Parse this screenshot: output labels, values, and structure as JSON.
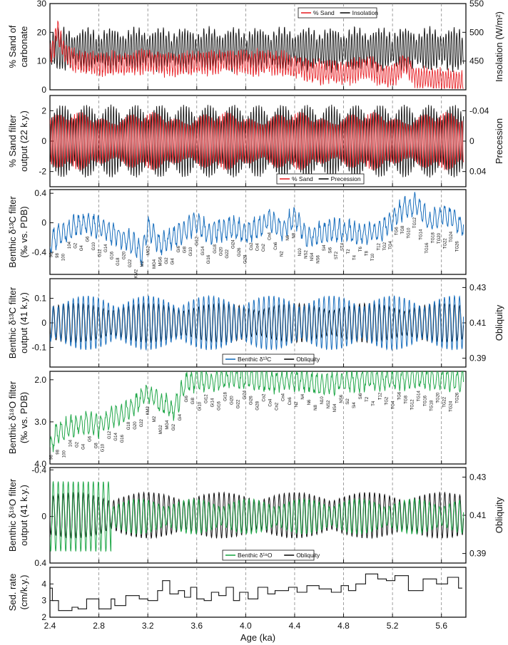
{
  "chart_data": [
    {
      "id": "p1",
      "type": "line",
      "ylabel_left": [
        "% Sand of",
        "carbonate"
      ],
      "ylabel_right": [
        "Insolation (W/m²)"
      ],
      "ylim_left": [
        0,
        30
      ],
      "yticks_left": [
        "0",
        "10",
        "20",
        "30"
      ],
      "ylim_right": [
        400,
        550
      ],
      "yticks_right": [
        "450",
        "500",
        "550"
      ],
      "legend": {
        "position": "top-center",
        "entries": [
          "% Sand",
          "Insolation"
        ]
      },
      "series": [
        {
          "name": "% Sand",
          "color": "#e8262b",
          "axis": "left",
          "x": [
            2.4,
            2.44,
            2.46,
            2.48,
            2.52,
            2.6,
            2.7,
            2.8,
            2.9,
            3.0,
            3.1,
            3.2,
            3.3,
            3.4,
            3.5,
            3.6,
            3.7,
            3.8,
            3.9,
            4.0,
            4.1,
            4.2,
            4.3,
            4.4,
            4.5,
            4.6,
            4.7,
            4.8,
            4.9,
            5.0,
            5.1,
            5.2,
            5.3,
            5.4,
            5.5,
            5.6,
            5.7,
            5.76
          ],
          "mean": [
            12,
            16,
            22,
            18,
            13,
            10,
            9.5,
            9,
            9,
            9,
            9.5,
            10,
            9.5,
            9,
            9,
            9.5,
            9.5,
            10,
            9.5,
            9.5,
            9.5,
            9.5,
            9,
            8.5,
            7,
            6,
            6,
            5.5,
            7,
            8,
            5,
            5,
            9,
            4,
            4,
            3.5,
            3,
            3
          ],
          "amp": 3.5,
          "period": 0.022
        },
        {
          "name": "Insolation",
          "color": "#111111",
          "axis": "right",
          "mean": 470,
          "amp": 35,
          "period": 0.022
        }
      ]
    },
    {
      "id": "p2",
      "type": "line",
      "ylabel_left": [
        "% Sand filter",
        "output (22 k.y.)"
      ],
      "ylabel_right": [
        "Precession"
      ],
      "ylim_left": [
        -3,
        3
      ],
      "yticks_left": [
        "-2",
        "0",
        "2"
      ],
      "ylim_right": [
        0.06,
        -0.06
      ],
      "yticks_right": [
        "-0.04",
        "0",
        "0.04"
      ],
      "legend": {
        "position": "bottom-center",
        "entries": [
          "% Sand",
          "Precession"
        ]
      },
      "series": [
        {
          "name": "% Sand",
          "color": "#e8262b",
          "amp_scale": 0.85
        },
        {
          "name": "Precession",
          "color": "#111111",
          "amp_scale": 1.0
        }
      ]
    },
    {
      "id": "p3",
      "type": "line",
      "ylabel_left": [
        "Benthic δ¹³C filter",
        "(‰ vs. PDB)"
      ],
      "ylim": [
        -0.7,
        0.45
      ],
      "yticks_left": [
        "0.4",
        "0",
        "-0.4"
      ],
      "series": [
        {
          "name": "Benthic δ¹³C",
          "color": "#1a6fbd",
          "x": [
            2.4,
            2.5,
            2.6,
            2.7,
            2.8,
            2.9,
            3.0,
            3.1,
            3.15,
            3.2,
            3.3,
            3.4,
            3.5,
            3.6,
            3.7,
            3.8,
            3.9,
            4.0,
            4.1,
            4.2,
            4.3,
            4.4,
            4.5,
            4.6,
            4.7,
            4.8,
            4.9,
            5.0,
            5.1,
            5.2,
            5.3,
            5.4,
            5.5,
            5.6,
            5.7,
            5.76
          ],
          "y": [
            -0.25,
            -0.15,
            -0.05,
            0.0,
            -0.05,
            -0.15,
            -0.2,
            -0.3,
            -0.45,
            -0.05,
            -0.3,
            -0.2,
            -0.1,
            0.0,
            -0.15,
            -0.1,
            -0.05,
            -0.15,
            -0.05,
            0.05,
            -0.1,
            0.1,
            -0.2,
            -0.15,
            -0.1,
            -0.1,
            -0.15,
            -0.15,
            -0.1,
            0.05,
            0.2,
            0.25,
            0.0,
            0.1,
            0.05,
            -0.05
          ]
        }
      ],
      "stages": [
        "96",
        "98",
        "100",
        "104",
        "G2",
        "G4",
        "G6",
        "G10",
        "G12",
        "G14",
        "G16",
        "G18",
        "G20",
        "G22",
        "KM2",
        "M2",
        "MG2",
        "MG4",
        "MG6",
        "Gi2",
        "Gi4",
        "Gi6",
        "Gi8",
        "Gi10",
        "Gi12",
        "Gi14",
        "Gi16",
        "Gi18",
        "Gi20",
        "Gi22",
        "Gi24",
        "Gi26",
        "Gi28",
        "Co2",
        "Co4",
        "Cn2",
        "Cn4",
        "Cn6",
        "N2",
        "N6",
        "N8",
        "N10",
        "NS2",
        "NS4",
        "NS6",
        "Si4",
        "Si6",
        "ST2",
        "ST4",
        "T2",
        "T4",
        "T6",
        "T8",
        "T10",
        "T12",
        "TG2",
        "TG4",
        "TG6",
        "TG8",
        "TG10",
        "TG12",
        "TG14",
        "TG16",
        "TG18",
        "TG20",
        "TG22",
        "TG24",
        "TG26"
      ]
    },
    {
      "id": "p4",
      "type": "line",
      "ylabel_left": [
        "Benthic δ¹³C filter",
        "output (41 k.y.)"
      ],
      "ylabel_right": [
        "Obliquity"
      ],
      "ylim_left": [
        -0.18,
        0.18
      ],
      "yticks_left": [
        "0.1",
        "0",
        "-0.1"
      ],
      "ylim_right": [
        0.385,
        0.435
      ],
      "yticks_right": [
        "0.43",
        "0.41",
        "0.39"
      ],
      "legend": {
        "position": "bottom-center",
        "entries": [
          "Benthic δ¹³C",
          "Obliquity"
        ]
      },
      "series": [
        {
          "name": "Benthic δ¹³C",
          "color": "#1a6fbd",
          "period": 0.041,
          "amp": 0.11
        },
        {
          "name": "Obliquity",
          "color": "#111111",
          "period": 0.041,
          "amp": 0.011
        }
      ]
    },
    {
      "id": "p5",
      "type": "line",
      "ylabel_left": [
        "Benthic δ¹⁸O filter",
        "(‰ vs. PDB)"
      ],
      "ylim": [
        4.0,
        1.8
      ],
      "yticks_left": [
        "2.0",
        "3.0",
        "4.0"
      ],
      "series": [
        {
          "name": "Benthic δ¹⁸O",
          "color": "#22a84a",
          "x": [
            2.4,
            2.45,
            2.5,
            2.6,
            2.7,
            2.8,
            2.9,
            3.0,
            3.1,
            3.15,
            3.2,
            3.3,
            3.35,
            3.4,
            3.45,
            3.5,
            3.6,
            3.7,
            3.8,
            4.0,
            4.2,
            4.4,
            4.6,
            4.8,
            5.0,
            5.2,
            5.4,
            5.6,
            5.76
          ],
          "y": [
            3.6,
            3.3,
            3.2,
            3.1,
            3.0,
            3.1,
            2.9,
            2.8,
            2.6,
            2.45,
            2.3,
            2.55,
            2.6,
            2.75,
            2.5,
            2.1,
            2.0,
            2.05,
            2.0,
            1.95,
            2.05,
            2.0,
            2.1,
            2.05,
            2.0,
            2.0,
            1.95,
            2.0,
            2.0
          ]
        }
      ],
      "stages": [
        "96",
        "98",
        "100",
        "104",
        "G2",
        "G4",
        "G6",
        "G8",
        "G10",
        "G12",
        "G14",
        "G16",
        "G18",
        "G20",
        "G22",
        "KM2",
        "M2",
        "MG2",
        "MG4",
        "Gi2",
        "Gi4",
        "Gi6",
        "Gi8",
        "Gi10",
        "Gi12",
        "Gi14",
        "Gi16",
        "Gi18",
        "Gi20",
        "Gi22",
        "Gi24",
        "Gi26",
        "Gi28",
        "Co2",
        "Co4",
        "Cn2",
        "Cn4",
        "Cn6",
        "N2",
        "N4",
        "N6",
        "N8",
        "N10",
        "NS2",
        "NS4",
        "NS6",
        "Si2",
        "Si4",
        "Si6",
        "T2",
        "T4",
        "T12",
        "TG2",
        "TG4",
        "TG6",
        "TG8",
        "TG12",
        "TG14",
        "TG16",
        "TG18",
        "TG20",
        "TG22",
        "TG24",
        "TG26"
      ]
    },
    {
      "id": "p6",
      "type": "line",
      "ylabel_left": [
        "Benthic δ¹⁸O filter",
        "output (41 k.y.)"
      ],
      "ylabel_right": [
        "Obliquity"
      ],
      "ylim_left": [
        0.4,
        -0.42
      ],
      "yticks_left": [
        "-0.4",
        "0",
        "0.4"
      ],
      "ylim_right": [
        0.385,
        0.435
      ],
      "yticks_right": [
        "0.43",
        "0.41",
        "0.39"
      ],
      "legend": {
        "position": "bottom-center",
        "entries": [
          "Benthic δ¹⁸O",
          "Obliquity"
        ]
      },
      "series": [
        {
          "name": "Benthic δ¹⁸O",
          "color": "#22a84a",
          "period": 0.041,
          "amp": 0.3
        },
        {
          "name": "Obliquity",
          "color": "#111111",
          "period": 0.041,
          "amp": 0.012
        }
      ]
    },
    {
      "id": "p7",
      "type": "line",
      "ylabel_left": [
        "Sed. rate",
        "(cm/k.y.)"
      ],
      "ylim": [
        2,
        5
      ],
      "yticks_left": [
        "4",
        "3",
        "2"
      ],
      "series": [
        {
          "name": "Sed. rate",
          "color": "#111111",
          "step": true,
          "x": [
            2.4,
            2.42,
            2.47,
            2.58,
            2.63,
            2.7,
            2.8,
            2.9,
            2.93,
            3.02,
            3.13,
            3.2,
            3.28,
            3.32,
            3.38,
            3.45,
            3.5,
            3.55,
            3.6,
            3.66,
            3.72,
            3.78,
            3.84,
            3.9,
            3.95,
            4.02,
            4.1,
            4.18,
            4.24,
            4.35,
            4.42,
            4.5,
            4.6,
            4.7,
            4.78,
            4.84,
            4.9,
            4.98,
            5.08,
            5.15,
            5.22,
            5.33,
            5.45,
            5.56,
            5.65,
            5.74,
            5.77
          ],
          "y": [
            3.75,
            3.0,
            2.4,
            2.6,
            2.5,
            3.1,
            2.5,
            3.1,
            2.7,
            3.3,
            3.1,
            3.0,
            3.6,
            4.2,
            3.4,
            3.6,
            3.2,
            3.8,
            3.1,
            3.0,
            3.5,
            3.3,
            3.8,
            3.0,
            3.5,
            3.1,
            3.8,
            3.4,
            3.6,
            3.8,
            3.5,
            3.9,
            3.7,
            3.5,
            3.9,
            3.6,
            4.0,
            4.6,
            4.3,
            4.2,
            4.5,
            3.6,
            4.3,
            4.0,
            4.4,
            3.75,
            3.75
          ]
        }
      ]
    }
  ],
  "x_axis": {
    "label": "Age (ka)",
    "range": [
      2.4,
      5.8
    ],
    "ticks": [
      "2.4",
      "2.8",
      "3.2",
      "3.6",
      "4.0",
      "4.4",
      "4.8",
      "5.2",
      "5.6"
    ],
    "dashed_lines": [
      2.8,
      3.2,
      3.6,
      4.0,
      4.4,
      4.8,
      5.2,
      5.6
    ]
  }
}
